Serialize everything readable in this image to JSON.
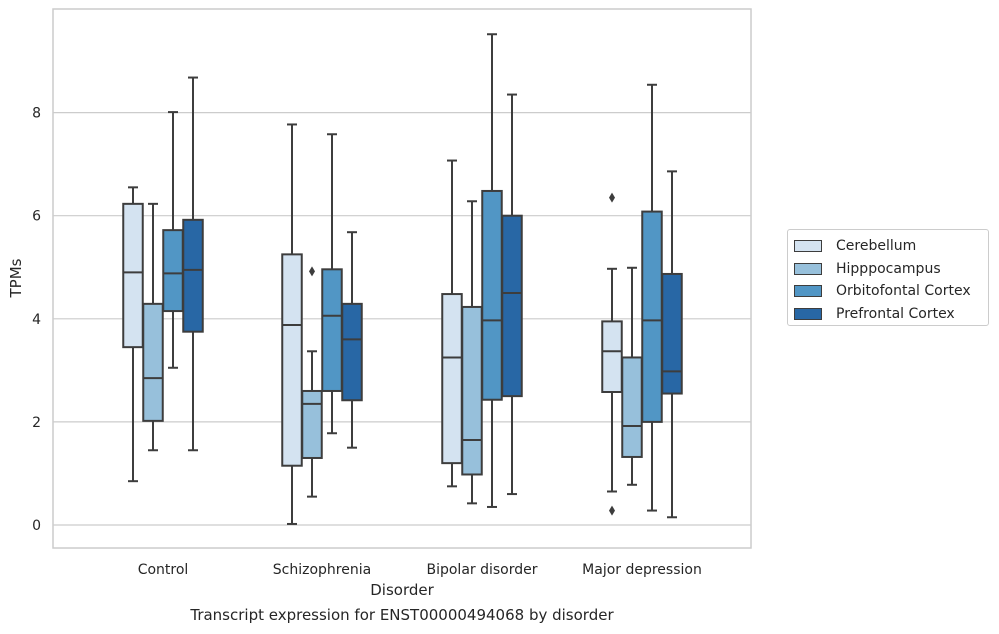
{
  "chart_data": {
    "type": "boxplot",
    "xlabel": "Disorder",
    "ylabel": "TPMs",
    "caption": "Transcript expression for ENST00000494068 by disorder",
    "ylim": [
      -0.4,
      10.05
    ],
    "yticks": [
      0,
      2,
      4,
      6,
      8
    ],
    "grid": "horizontal",
    "legend_position": "right",
    "categories": [
      "Control",
      "Schizophrenia",
      "Bipolar disorder",
      "Major depression"
    ],
    "series": [
      {
        "name": "Cerebellum",
        "color": "#d4e3f1",
        "boxes": [
          {
            "whislo": 0.85,
            "q1": 3.45,
            "med": 4.9,
            "q3": 6.23,
            "whishi": 6.55,
            "fliers": []
          },
          {
            "whislo": 0.02,
            "q1": 1.15,
            "med": 3.88,
            "q3": 5.25,
            "whishi": 7.77,
            "fliers": []
          },
          {
            "whislo": 0.75,
            "q1": 1.2,
            "med": 3.25,
            "q3": 4.48,
            "whishi": 7.07,
            "fliers": []
          },
          {
            "whislo": 0.65,
            "q1": 2.58,
            "med": 3.37,
            "q3": 3.95,
            "whishi": 4.97,
            "fliers": [
              6.35,
              0.28
            ]
          }
        ]
      },
      {
        "name": "Hipppocampus",
        "color": "#97c0db",
        "boxes": [
          {
            "whislo": 1.45,
            "q1": 2.02,
            "med": 2.85,
            "q3": 4.29,
            "whishi": 6.23,
            "fliers": []
          },
          {
            "whislo": 0.55,
            "q1": 1.3,
            "med": 2.35,
            "q3": 2.6,
            "whishi": 3.37,
            "fliers": [
              4.92
            ]
          },
          {
            "whislo": 0.42,
            "q1": 0.98,
            "med": 1.65,
            "q3": 4.23,
            "whishi": 6.28,
            "fliers": []
          },
          {
            "whislo": 0.78,
            "q1": 1.32,
            "med": 1.92,
            "q3": 3.25,
            "whishi": 4.99,
            "fliers": []
          }
        ]
      },
      {
        "name": "Orbitofontal Cortex",
        "color": "#5196c5",
        "boxes": [
          {
            "whislo": 3.05,
            "q1": 4.15,
            "med": 4.88,
            "q3": 5.72,
            "whishi": 8.01,
            "fliers": []
          },
          {
            "whislo": 1.78,
            "q1": 2.6,
            "med": 4.06,
            "q3": 4.96,
            "whishi": 7.58,
            "fliers": []
          },
          {
            "whislo": 0.35,
            "q1": 2.43,
            "med": 3.97,
            "q3": 6.48,
            "whishi": 9.52,
            "fliers": []
          },
          {
            "whislo": 0.28,
            "q1": 2.0,
            "med": 3.97,
            "q3": 6.08,
            "whishi": 8.54,
            "fliers": []
          }
        ]
      },
      {
        "name": "Prefrontal Cortex",
        "color": "#2867a5",
        "boxes": [
          {
            "whislo": 1.45,
            "q1": 3.75,
            "med": 4.95,
            "q3": 5.92,
            "whishi": 8.68,
            "fliers": []
          },
          {
            "whislo": 1.5,
            "q1": 2.42,
            "med": 3.6,
            "q3": 4.29,
            "whishi": 5.68,
            "fliers": []
          },
          {
            "whislo": 0.6,
            "q1": 2.5,
            "med": 4.5,
            "q3": 6.0,
            "whishi": 8.35,
            "fliers": []
          },
          {
            "whislo": 0.15,
            "q1": 2.55,
            "med": 2.98,
            "q3": 4.87,
            "whishi": 6.86,
            "fliers": []
          }
        ]
      }
    ]
  }
}
